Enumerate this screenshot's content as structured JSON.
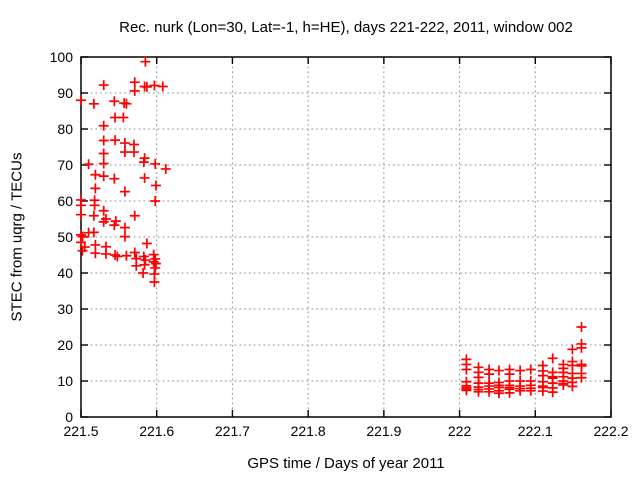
{
  "title": "Rec. nurk (Lon=30, Lat=-1, h=HE), days 221-222, 2011, window 002",
  "chart_data": {
    "type": "scatter",
    "title": "Rec. nurk (Lon=30, Lat=-1, h=HE), days 221-222, 2011, window 002",
    "xlabel": "GPS time / Days of year 2011",
    "ylabel": "STEC from uqrg / TECUs",
    "xlim": [
      221.5,
      222.2
    ],
    "ylim": [
      0,
      100
    ],
    "x_ticks": [
      221.5,
      221.6,
      221.7,
      221.8,
      221.9,
      222.0,
      222.1,
      222.2
    ],
    "x_tick_labels": [
      "221.5",
      "221.6",
      "221.7",
      "221.8",
      "221.9",
      "222",
      "222.1",
      "222.2"
    ],
    "y_ticks": [
      0,
      10,
      20,
      30,
      40,
      50,
      60,
      70,
      80,
      90,
      100
    ],
    "y_tick_labels": [
      "0",
      "10",
      "20",
      "30",
      "40",
      "50",
      "60",
      "70",
      "80",
      "90",
      "100"
    ],
    "grid": true,
    "grid_color": "#888888",
    "axis_color": "#000000",
    "marker": "plus",
    "marker_color": "#ff0000",
    "legend": "none",
    "series": [
      {
        "name": "STEC",
        "points": [
          [
            221.5,
            88.0
          ],
          [
            221.5,
            60.3
          ],
          [
            221.5,
            58.8
          ],
          [
            221.5,
            56.2
          ],
          [
            221.5,
            50.6
          ],
          [
            221.502,
            50.1
          ],
          [
            221.5,
            48.5
          ],
          [
            221.502,
            46.2
          ],
          [
            221.505,
            47.2
          ],
          [
            221.51,
            70.2
          ],
          [
            221.51,
            51.2
          ],
          [
            221.517,
            87.0
          ],
          [
            221.519,
            67.3
          ],
          [
            221.519,
            63.5
          ],
          [
            221.518,
            60.2
          ],
          [
            221.518,
            58.8
          ],
          [
            221.517,
            55.9
          ],
          [
            221.517,
            51.3
          ],
          [
            221.519,
            47.8
          ],
          [
            221.519,
            45.5
          ],
          [
            221.53,
            92.2
          ],
          [
            221.53,
            80.9
          ],
          [
            221.53,
            76.8
          ],
          [
            221.53,
            73.2
          ],
          [
            221.53,
            70.4
          ],
          [
            221.53,
            66.9
          ],
          [
            221.53,
            57.3
          ],
          [
            221.533,
            55.0
          ],
          [
            221.53,
            54.2
          ],
          [
            221.533,
            47.3
          ],
          [
            221.533,
            45.3
          ],
          [
            221.544,
            87.7
          ],
          [
            221.545,
            83.2
          ],
          [
            221.545,
            76.9
          ],
          [
            221.544,
            66.2
          ],
          [
            221.546,
            54.4
          ],
          [
            221.544,
            53.3
          ],
          [
            221.545,
            45.0
          ],
          [
            221.548,
            44.6
          ],
          [
            221.557,
            87.2
          ],
          [
            221.56,
            87.0
          ],
          [
            221.556,
            83.2
          ],
          [
            221.558,
            76.1
          ],
          [
            221.558,
            73.6
          ],
          [
            221.558,
            62.6
          ],
          [
            221.558,
            52.6
          ],
          [
            221.558,
            50.1
          ],
          [
            221.56,
            44.8
          ],
          [
            221.571,
            93.0
          ],
          [
            221.571,
            90.6
          ],
          [
            221.57,
            75.7
          ],
          [
            221.57,
            73.6
          ],
          [
            221.571,
            55.9
          ],
          [
            221.571,
            45.7
          ],
          [
            221.573,
            44.0
          ],
          [
            221.573,
            42.0
          ],
          [
            221.585,
            98.7
          ],
          [
            221.584,
            91.8
          ],
          [
            221.587,
            91.7
          ],
          [
            221.584,
            71.9
          ],
          [
            221.583,
            70.8
          ],
          [
            221.584,
            66.4
          ],
          [
            221.587,
            48.2
          ],
          [
            221.583,
            44.6
          ],
          [
            221.585,
            43.6
          ],
          [
            221.584,
            42.3
          ],
          [
            221.582,
            40.0
          ],
          [
            221.597,
            92.1
          ],
          [
            221.608,
            91.8
          ],
          [
            221.598,
            70.3
          ],
          [
            221.612,
            68.9
          ],
          [
            221.599,
            64.3
          ],
          [
            221.598,
            60.0
          ],
          [
            221.596,
            45.1
          ],
          [
            221.598,
            43.9
          ],
          [
            221.596,
            43.1
          ],
          [
            221.599,
            42.6
          ],
          [
            221.598,
            41.4
          ],
          [
            221.597,
            39.7
          ],
          [
            221.597,
            37.5
          ],
          [
            222.009,
            16.0
          ],
          [
            222.009,
            14.6
          ],
          [
            222.009,
            13.2
          ],
          [
            222.009,
            9.8
          ],
          [
            222.009,
            8.7
          ],
          [
            222.009,
            8.2
          ],
          [
            222.009,
            7.7
          ],
          [
            222.009,
            7.4
          ],
          [
            222.025,
            13.8
          ],
          [
            222.025,
            12.4
          ],
          [
            222.025,
            11.0
          ],
          [
            222.025,
            9.4
          ],
          [
            222.025,
            8.3
          ],
          [
            222.025,
            7.6
          ],
          [
            222.025,
            7.0
          ],
          [
            222.039,
            13.2
          ],
          [
            222.039,
            11.9
          ],
          [
            222.039,
            9.4
          ],
          [
            222.039,
            8.6
          ],
          [
            222.039,
            7.8
          ],
          [
            222.039,
            7.0
          ],
          [
            222.052,
            12.9
          ],
          [
            222.052,
            9.6
          ],
          [
            222.052,
            8.8
          ],
          [
            222.052,
            8.2
          ],
          [
            222.052,
            7.3
          ],
          [
            222.052,
            6.6
          ],
          [
            222.066,
            13.2
          ],
          [
            222.066,
            11.9
          ],
          [
            222.066,
            10.0
          ],
          [
            222.066,
            8.8
          ],
          [
            222.066,
            8.2
          ],
          [
            222.066,
            7.7
          ],
          [
            222.066,
            6.7
          ],
          [
            222.08,
            12.9
          ],
          [
            222.08,
            10.0
          ],
          [
            222.08,
            8.6
          ],
          [
            222.08,
            7.9
          ],
          [
            222.08,
            7.3
          ],
          [
            222.094,
            13.2
          ],
          [
            222.094,
            10.0
          ],
          [
            222.094,
            8.8
          ],
          [
            222.094,
            8.0
          ],
          [
            222.094,
            7.3
          ],
          [
            222.11,
            14.3
          ],
          [
            222.11,
            12.8
          ],
          [
            222.11,
            11.5
          ],
          [
            222.11,
            9.8
          ],
          [
            222.11,
            8.6
          ],
          [
            222.11,
            8.2
          ],
          [
            222.11,
            7.2
          ],
          [
            222.123,
            16.3
          ],
          [
            222.123,
            12.4
          ],
          [
            222.123,
            11.2
          ],
          [
            222.123,
            10.8
          ],
          [
            222.123,
            9.4
          ],
          [
            222.123,
            8.1
          ],
          [
            222.123,
            6.9
          ],
          [
            222.137,
            14.6
          ],
          [
            222.137,
            13.5
          ],
          [
            222.137,
            12.4
          ],
          [
            222.137,
            11.2
          ],
          [
            222.137,
            10.0
          ],
          [
            222.137,
            9.3
          ],
          [
            222.137,
            8.9
          ],
          [
            222.149,
            18.8
          ],
          [
            222.149,
            15.4
          ],
          [
            222.149,
            14.3
          ],
          [
            222.149,
            12.1
          ],
          [
            222.149,
            10.8
          ],
          [
            222.149,
            9.6
          ],
          [
            222.149,
            8.5
          ],
          [
            222.161,
            25.0
          ],
          [
            222.161,
            20.3
          ],
          [
            222.161,
            19.2
          ],
          [
            222.161,
            14.6
          ],
          [
            222.161,
            14.2
          ],
          [
            222.161,
            12.1
          ],
          [
            222.161,
            10.9
          ]
        ]
      }
    ]
  }
}
